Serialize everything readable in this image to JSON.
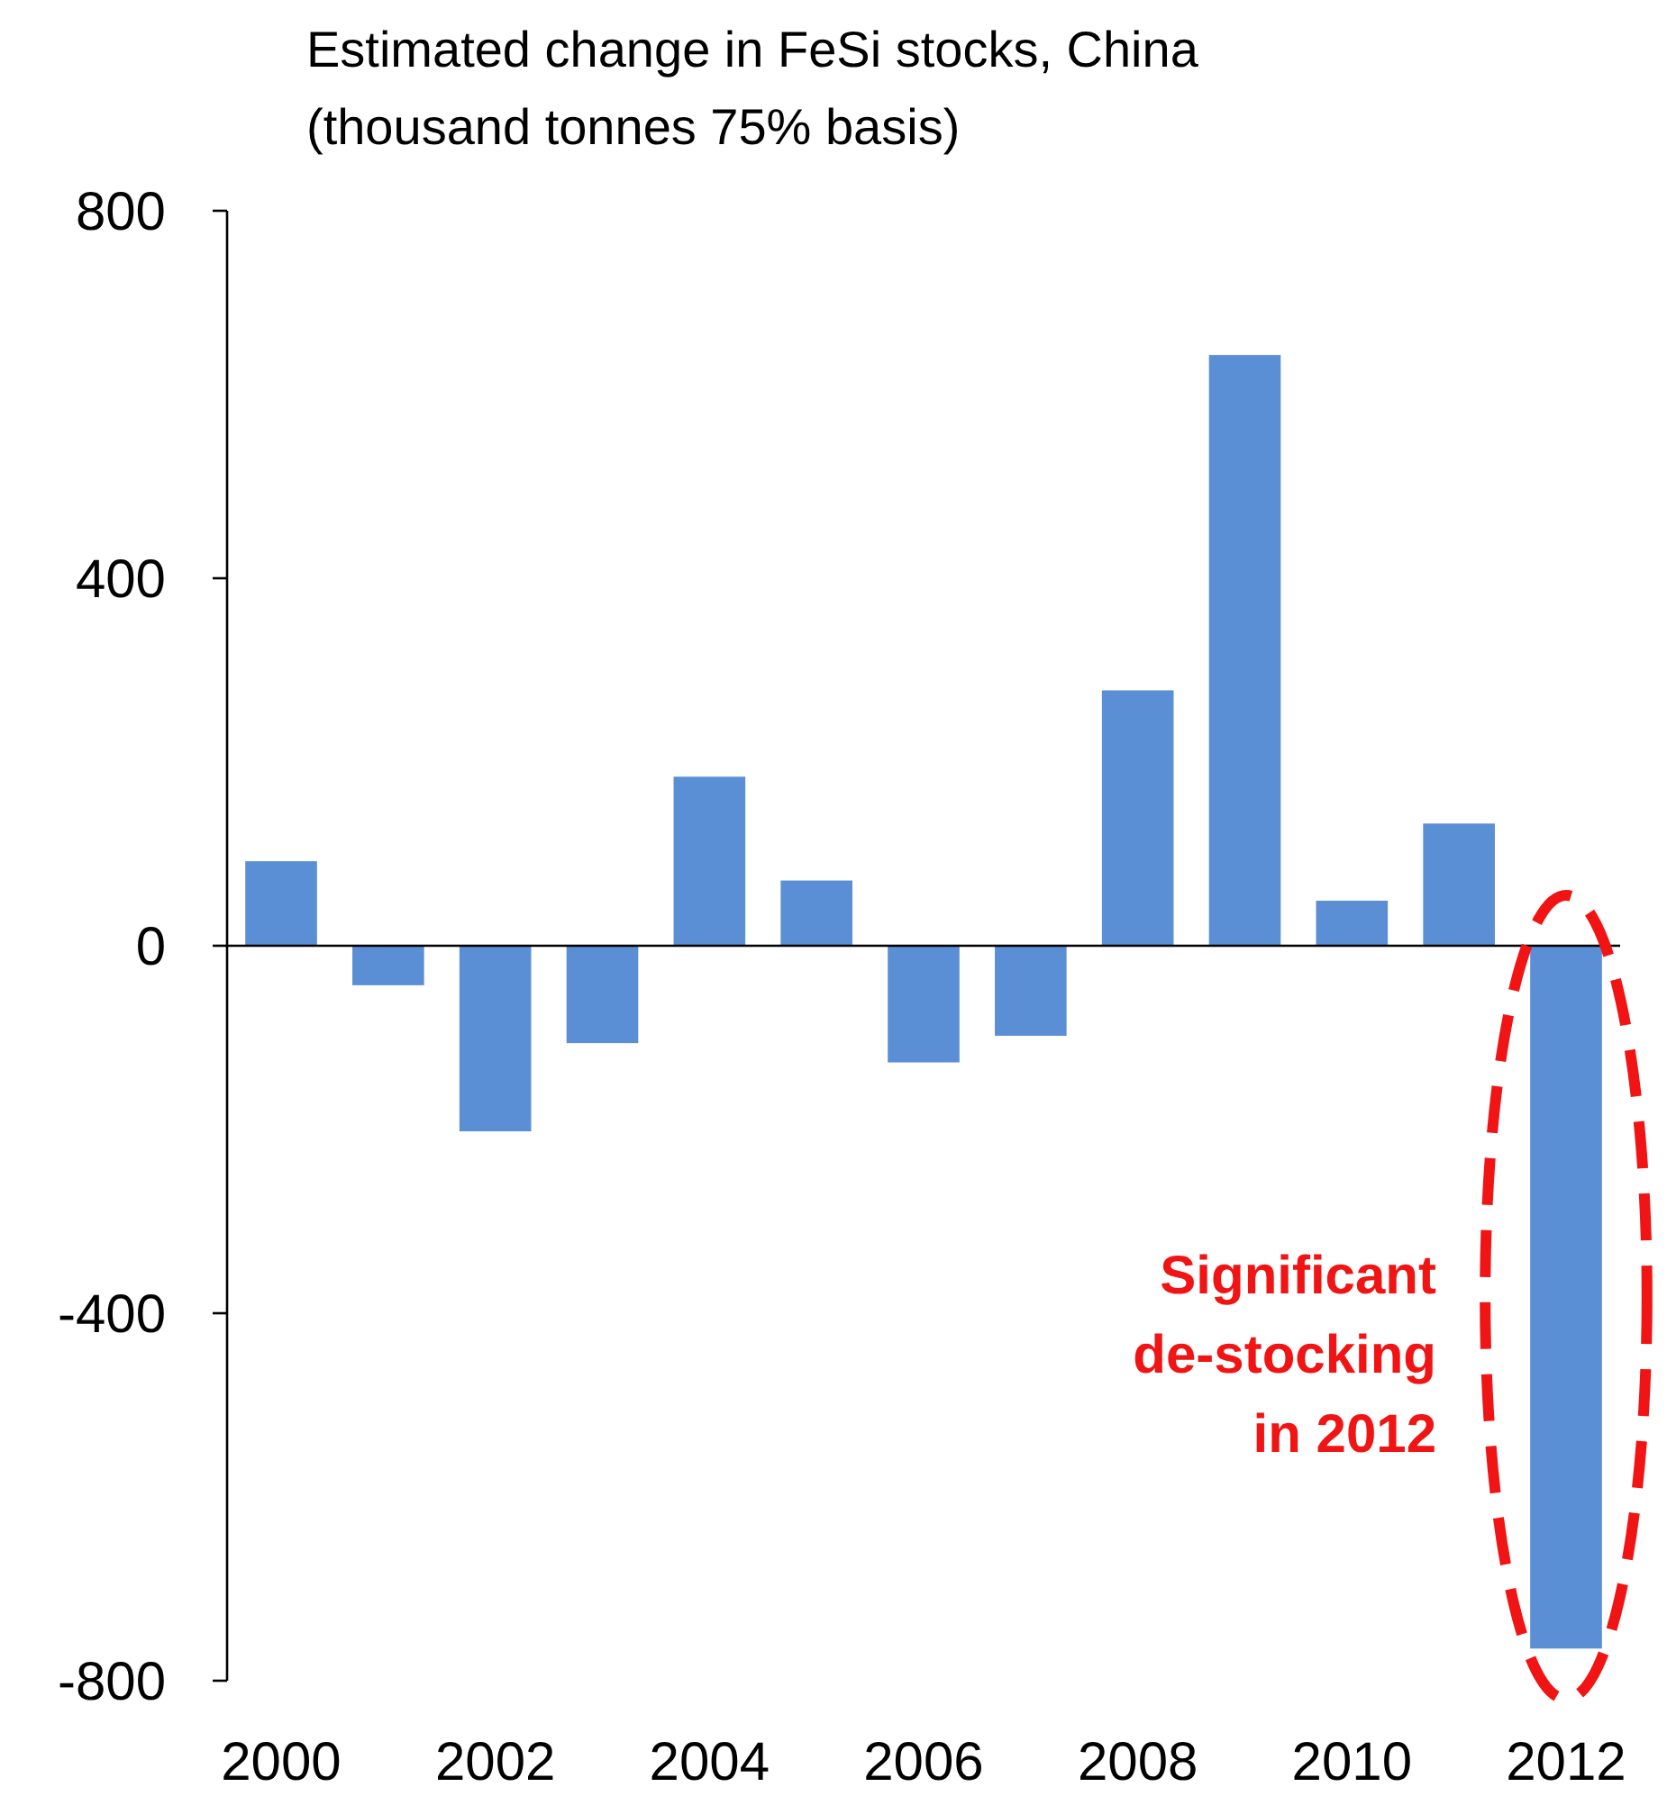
{
  "chart_data": {
    "type": "bar",
    "title": "Estimated change in FeSi stocks, China",
    "subtitle": "(thousand tonnes 75% basis)",
    "categories": [
      "2000",
      null,
      "2002",
      null,
      "2004",
      null,
      "2006",
      null,
      "2008",
      null,
      "2010",
      null,
      "2012"
    ],
    "values": [
      92,
      -43,
      -202,
      -106,
      184,
      71,
      -127,
      -98,
      278,
      643,
      49,
      133,
      -765
    ],
    "color": "#5b8fd5",
    "ylim": [
      -800,
      800
    ],
    "yticks": [
      -800,
      -400,
      0,
      400,
      800
    ],
    "annotations": [
      "Significant de-stocking in 2012"
    ]
  }
}
